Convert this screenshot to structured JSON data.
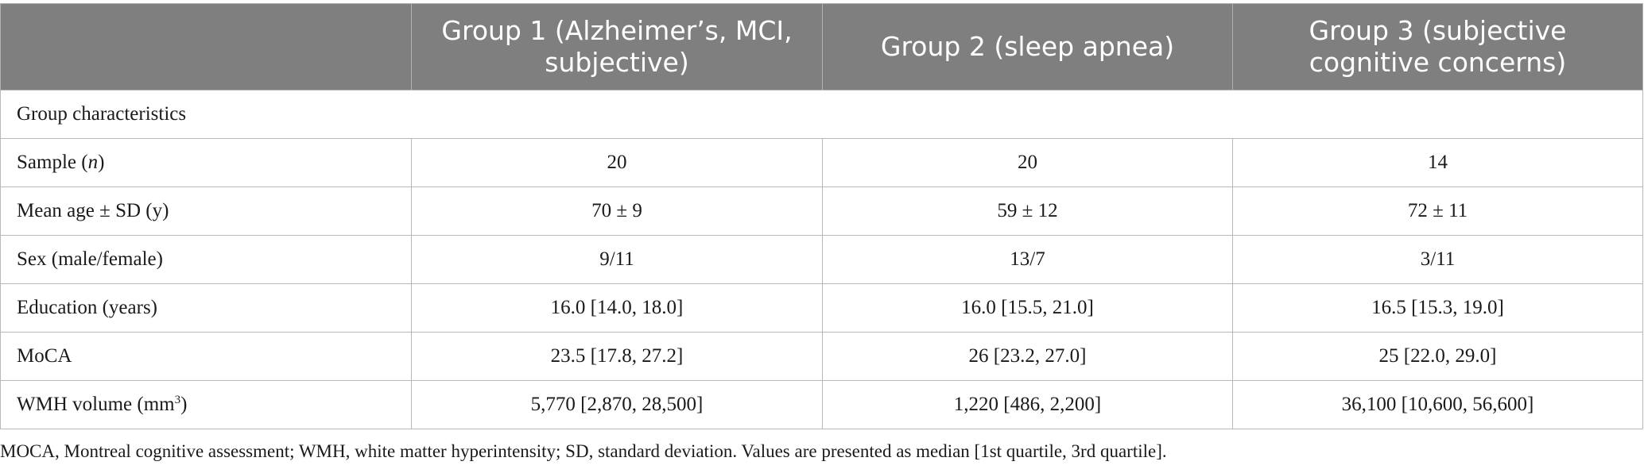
{
  "table": {
    "headers": [
      "",
      "Group 1 (Alzheimer’s, MCI, subjective)",
      "Group 2 (sleep apnea)",
      "Group 3 (subjective cognitive concerns)"
    ],
    "section_label": "Group characteristics",
    "rows": [
      {
        "label_pre": "Sample (",
        "label_ital": "n",
        "label_post": ")",
        "values": [
          "20",
          "20",
          "14"
        ]
      },
      {
        "label": "Mean age ± SD (y)",
        "values": [
          "70 ± 9",
          "59 ± 12",
          "72 ± 11"
        ]
      },
      {
        "label": "Sex (male/female)",
        "values": [
          "9/11",
          "13/7",
          "3/11"
        ]
      },
      {
        "label": "Education (years)",
        "values": [
          "16.0 [14.0, 18.0]",
          "16.0 [15.5, 21.0]",
          "16.5 [15.3, 19.0]"
        ]
      },
      {
        "label": "MoCA",
        "values": [
          "23.5 [17.8, 27.2]",
          "26 [23.2, 27.0]",
          "25 [22.0, 29.0]"
        ]
      },
      {
        "label_pre": "WMH volume (mm",
        "label_sup": "3",
        "label_post": ")",
        "values": [
          "5,770 [2,870, 28,500]",
          "1,220 [486, 2,200]",
          "36,100 [10,600, 56,600]"
        ]
      }
    ]
  },
  "footnote": "MOCA, Montreal cognitive assessment; WMH, white matter hyperintensity; SD, standard deviation. Values are presented as median [1st quartile, 3rd quartile].",
  "colors": {
    "header_bg": "#7f7f7f",
    "header_text": "#ffffff",
    "grid": "#b8b8b8"
  }
}
